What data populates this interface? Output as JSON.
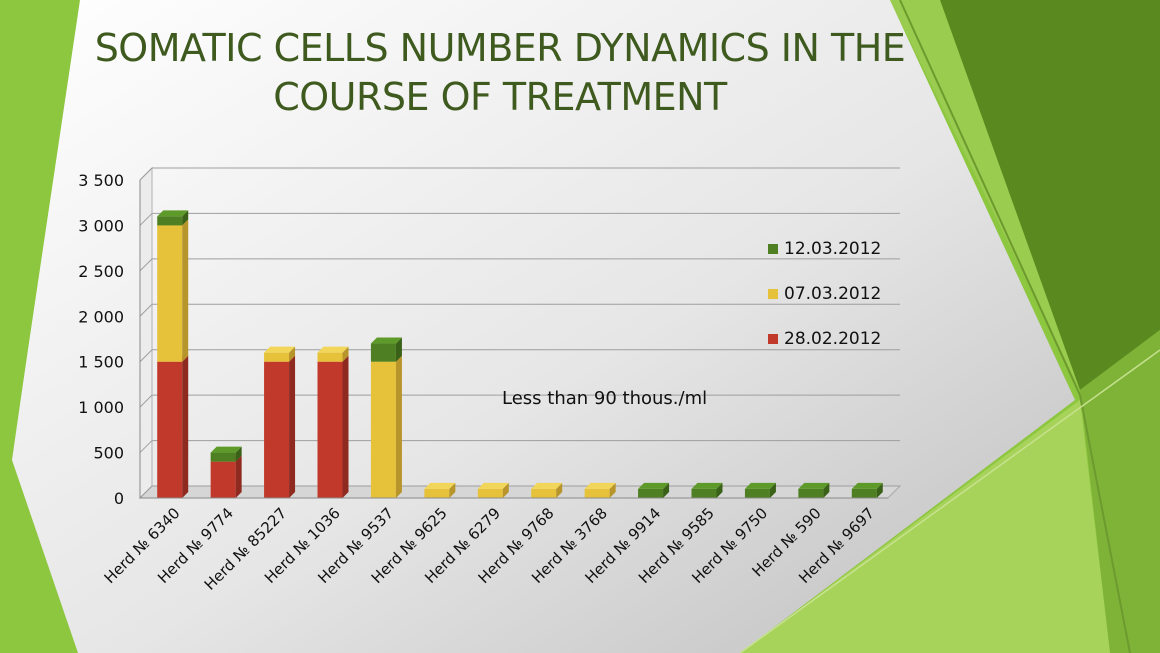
{
  "slide": {
    "title_line1": "SOMATIC CELLS NUMBER DYNAMICS IN THE",
    "title_line2": "COURSE OF TREATMENT",
    "colors": {
      "background_start": "#f7f7f7",
      "background_end": "#c9c9c9",
      "accent_green": "#8dc63f",
      "accent_green_dark": "#5a8a1f",
      "title_color": "#3f5a1f"
    }
  },
  "chart_data": {
    "type": "bar",
    "stacked": true,
    "title": "",
    "xlabel": "",
    "ylabel": "",
    "ylim": [
      0,
      3500
    ],
    "yticks": [
      0,
      500,
      1000,
      1500,
      2000,
      2500,
      3000,
      3500
    ],
    "ytick_labels": [
      "0",
      "500",
      "1 000",
      "1 500",
      "2 000",
      "2 500",
      "3 000",
      "3 500"
    ],
    "grid": true,
    "legend_position": "right",
    "categories": [
      "Herd № 6340",
      "Herd № 9774",
      "Herd № 85227",
      "Herd № 1036",
      "Herd № 9537",
      "Herd № 9625",
      "Herd № 6279",
      "Herd № 9768",
      "Herd № 3768",
      "Herd № 9914",
      "Herd № 9585",
      "Herd № 9750",
      "Herd № 590",
      "Herd № 9697"
    ],
    "series": [
      {
        "name": "28.02.2012",
        "color": "#c0392b",
        "side": "#8e2a1f",
        "top": "#d9503f",
        "values": [
          1500,
          400,
          1500,
          1500,
          0,
          0,
          0,
          0,
          0,
          0,
          0,
          0,
          0,
          0
        ]
      },
      {
        "name": "07.03.2012",
        "color": "#e6c23a",
        "side": "#b8952a",
        "top": "#f2d65a",
        "values": [
          1500,
          0,
          100,
          100,
          1500,
          100,
          100,
          100,
          100,
          0,
          0,
          0,
          0,
          0
        ]
      },
      {
        "name": "12.03.2012",
        "color": "#4f7f23",
        "side": "#3a6118",
        "top": "#5e9a2a",
        "values": [
          100,
          100,
          0,
          0,
          200,
          0,
          0,
          0,
          0,
          100,
          100,
          100,
          100,
          100
        ]
      }
    ],
    "legend_order": [
      "12.03.2012",
      "07.03.2012",
      "28.02.2012"
    ],
    "annotation": "Less than 90 thous./ml"
  }
}
